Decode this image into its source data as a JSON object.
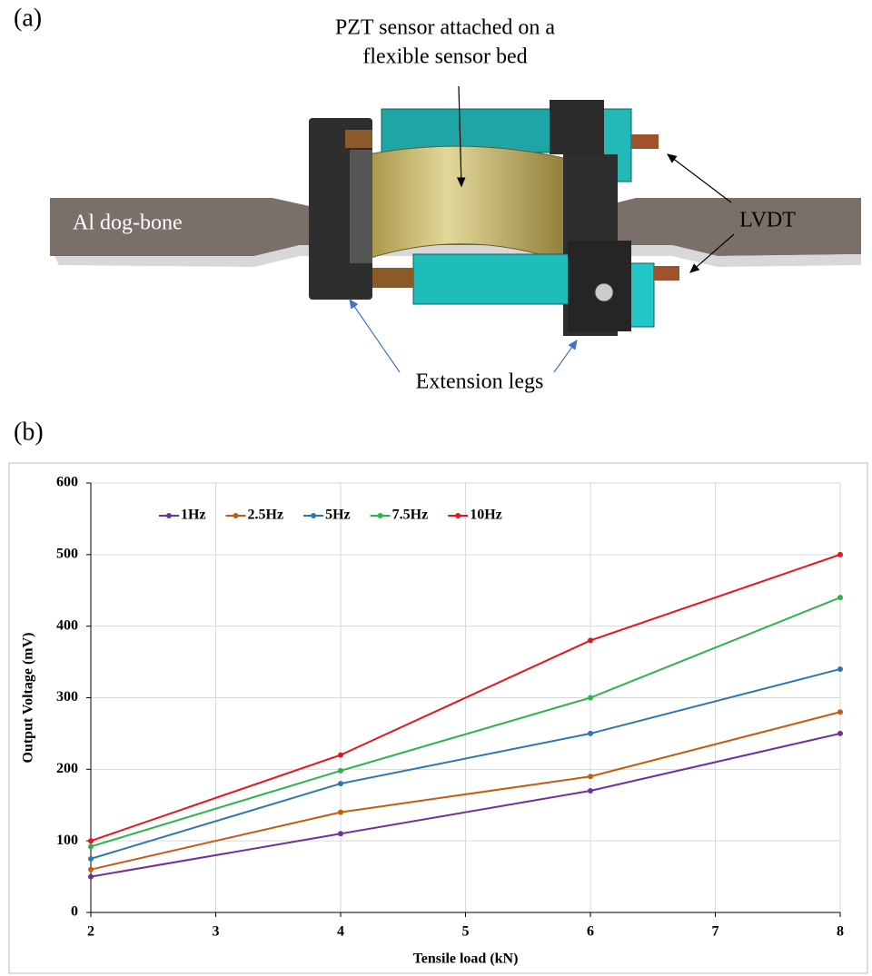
{
  "panel_a": {
    "label": "(a)",
    "annotations": {
      "sensor": [
        "PZT sensor attached on a",
        "flexible sensor bed"
      ],
      "dogbone": "Al dog-bone",
      "lvdt": "LVDT",
      "legs": "Extension legs"
    }
  },
  "panel_b": {
    "label": "(b)"
  },
  "chart_data": {
    "type": "line",
    "x_label": "Tensile load (kN)",
    "y_label": "Output Voltage (mV)",
    "x": [
      2,
      4,
      6,
      8
    ],
    "series": [
      {
        "name": "1Hz",
        "color": "#7030a0",
        "values": [
          50,
          110,
          170,
          250
        ]
      },
      {
        "name": "2.5Hz",
        "color": "#c55a11",
        "values": [
          60,
          140,
          190,
          280
        ]
      },
      {
        "name": "5Hz",
        "color": "#2e75b6",
        "values": [
          75,
          180,
          250,
          340
        ]
      },
      {
        "name": "7.5Hz",
        "color": "#2db34a",
        "values": [
          92,
          198,
          300,
          440
        ]
      },
      {
        "name": "10Hz",
        "color": "#e8141b",
        "values": [
          100,
          220,
          380,
          500
        ]
      }
    ],
    "xlim": [
      2,
      8
    ],
    "xticks": [
      2,
      3,
      4,
      5,
      6,
      7,
      8
    ],
    "ylim": [
      0,
      600
    ],
    "yticks": [
      0,
      100,
      200,
      300,
      400,
      500,
      600
    ],
    "grid": true,
    "legend": "top-left"
  }
}
